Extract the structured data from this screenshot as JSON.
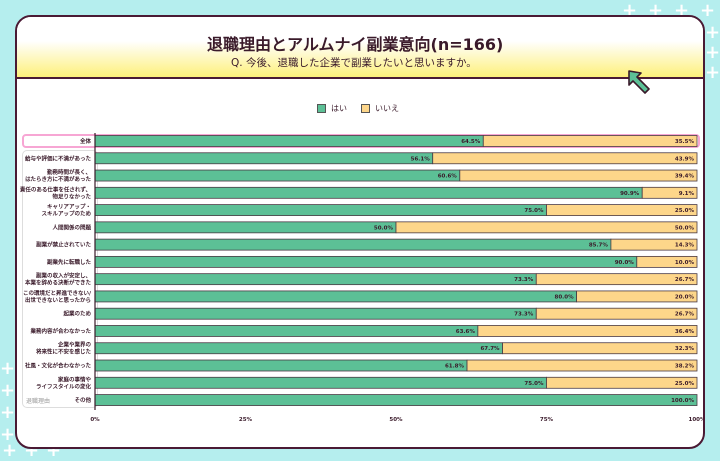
{
  "header": {
    "title": "退職理由とアルムナイ副業意向(n=166)",
    "subtitle": "Q. 今後、退職した企業で副業したいと思いますか。"
  },
  "chart_data": {
    "type": "bar",
    "orientation": "horizontal",
    "stacked": true,
    "categories": [
      "全体",
      "給与や評価に不満があった",
      "勤務時間が長く、\nはたらき方に不満があった",
      "責任のある仕事を任されず、\n物足りなかった",
      "キャリアアップ・\nスキルアップのため",
      "人間関係の問題",
      "副業が禁止されていた",
      "副業先に転職した",
      "副業の収入が安定し、\n本業を辞める決断ができた",
      "この環境だと昇進できない/\n出世できないと思ったから",
      "起業のため",
      "業務内容が合わなかった",
      "企業や業界の\n将来性に不安を感じた",
      "社風・文化が合わなかった",
      "家庭の事情や\nライフスタイルの変化",
      "その他"
    ],
    "series": [
      {
        "name": "はい",
        "color": "#5cc096",
        "values": [
          64.5,
          56.1,
          60.6,
          90.9,
          75.0,
          50.0,
          85.7,
          90.0,
          73.3,
          80.0,
          73.3,
          63.6,
          67.7,
          61.8,
          75.0,
          100.0
        ]
      },
      {
        "name": "いいえ",
        "color": "#fdd68a",
        "values": [
          35.5,
          43.9,
          39.4,
          9.1,
          25.0,
          50.0,
          14.3,
          10.0,
          26.7,
          20.0,
          26.7,
          36.4,
          32.3,
          38.2,
          25.0,
          0
        ]
      }
    ],
    "xlim": [
      0,
      100
    ],
    "xticks": [
      "0%",
      "25%",
      "50%",
      "75%",
      "100%"
    ],
    "ylabel": "退職理由",
    "legend": "top-center",
    "highlight": "全体"
  }
}
